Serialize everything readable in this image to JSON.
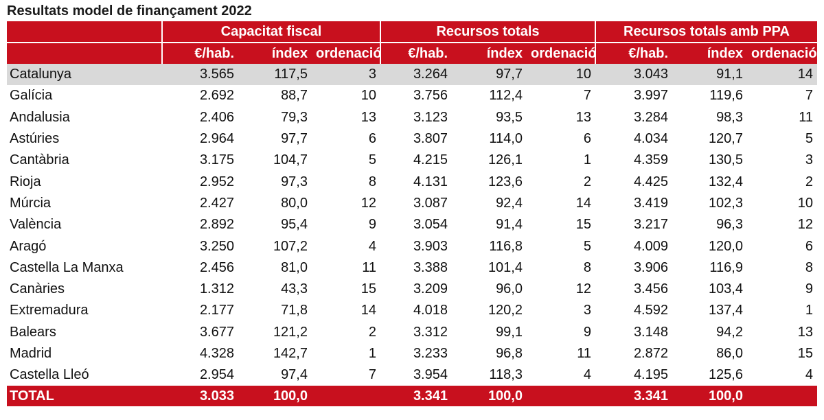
{
  "title": "Resultats model de finançament 2022",
  "chart_data": {
    "type": "table",
    "title": "Resultats model de finançament 2022",
    "groups": [
      "Capacitat fiscal",
      "Recursos totals",
      "Recursos totals amb PPA"
    ],
    "columns": [
      "€/hab.",
      "índex",
      "ordenació",
      "€/hab.",
      "índex",
      "ordenació",
      "€/hab.",
      "índex",
      "ordenació"
    ],
    "rows": [
      {
        "name": "Catalunya",
        "values": [
          "3.565",
          "117,5",
          "3",
          "3.264",
          "97,7",
          "10",
          "3.043",
          "91,1",
          "14"
        ]
      },
      {
        "name": "Galícia",
        "values": [
          "2.692",
          "88,7",
          "10",
          "3.756",
          "112,4",
          "7",
          "3.997",
          "119,6",
          "7"
        ]
      },
      {
        "name": "Andalusia",
        "values": [
          "2.406",
          "79,3",
          "13",
          "3.123",
          "93,5",
          "13",
          "3.284",
          "98,3",
          "11"
        ]
      },
      {
        "name": "Astúries",
        "values": [
          "2.964",
          "97,7",
          "6",
          "3.807",
          "114,0",
          "6",
          "4.034",
          "120,7",
          "5"
        ]
      },
      {
        "name": "Cantàbria",
        "values": [
          "3.175",
          "104,7",
          "5",
          "4.215",
          "126,1",
          "1",
          "4.359",
          "130,5",
          "3"
        ]
      },
      {
        "name": "Rioja",
        "values": [
          "2.952",
          "97,3",
          "8",
          "4.131",
          "123,6",
          "2",
          "4.425",
          "132,4",
          "2"
        ]
      },
      {
        "name": "Múrcia",
        "values": [
          "2.427",
          "80,0",
          "12",
          "3.087",
          "92,4",
          "14",
          "3.419",
          "102,3",
          "10"
        ]
      },
      {
        "name": "València",
        "values": [
          "2.892",
          "95,4",
          "9",
          "3.054",
          "91,4",
          "15",
          "3.217",
          "96,3",
          "12"
        ]
      },
      {
        "name": "Aragó",
        "values": [
          "3.250",
          "107,2",
          "4",
          "3.903",
          "116,8",
          "5",
          "4.009",
          "120,0",
          "6"
        ]
      },
      {
        "name": "Castella La Manxa",
        "values": [
          "2.456",
          "81,0",
          "11",
          "3.388",
          "101,4",
          "8",
          "3.906",
          "116,9",
          "8"
        ]
      },
      {
        "name": "Canàries",
        "values": [
          "1.312",
          "43,3",
          "15",
          "3.209",
          "96,0",
          "12",
          "3.456",
          "103,4",
          "9"
        ]
      },
      {
        "name": "Extremadura",
        "values": [
          "2.177",
          "71,8",
          "14",
          "4.018",
          "120,2",
          "3",
          "4.592",
          "137,4",
          "1"
        ]
      },
      {
        "name": "Balears",
        "values": [
          "3.677",
          "121,2",
          "2",
          "3.312",
          "99,1",
          "9",
          "3.148",
          "94,2",
          "13"
        ]
      },
      {
        "name": "Madrid",
        "values": [
          "4.328",
          "142,7",
          "1",
          "3.233",
          "96,8",
          "11",
          "2.872",
          "86,0",
          "15"
        ]
      },
      {
        "name": "Castella Lleó",
        "values": [
          "2.954",
          "97,4",
          "7",
          "3.954",
          "118,3",
          "4",
          "4.195",
          "125,6",
          "4"
        ]
      }
    ],
    "total": {
      "name": "TOTAL",
      "values": [
        "3.033",
        "100,0",
        "",
        "3.341",
        "100,0",
        "",
        "3.341",
        "100,0",
        ""
      ]
    },
    "highlight_row": "Catalunya",
    "colors": {
      "header": "#c8101e",
      "highlight": "#d9d9d9"
    }
  }
}
